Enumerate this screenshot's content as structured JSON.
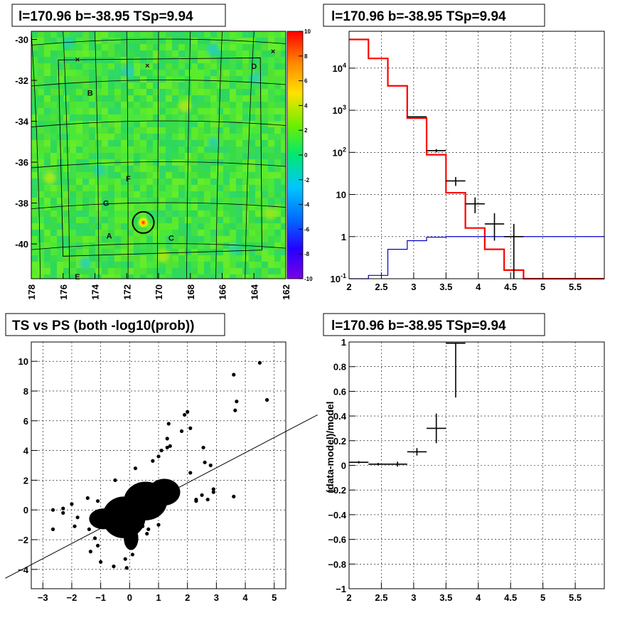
{
  "chart_data": [
    {
      "type": "heatmap",
      "title": "l=170.96 b=-38.95 TSp=9.94",
      "x_ticks": [
        "178",
        "176",
        "174",
        "172",
        "170",
        "168",
        "166",
        "164",
        "162"
      ],
      "y_ticks": [
        "-30",
        "-32",
        "-34",
        "-36",
        "-38",
        "-40"
      ],
      "xlim": [
        178,
        162
      ],
      "ylim": [
        -41.7,
        -29.6
      ],
      "z_range": [
        -10,
        10
      ],
      "z_ticks": [
        "10",
        "8",
        "6",
        "4",
        "2",
        "0",
        "-2",
        "-4",
        "-6",
        "-8",
        "-10"
      ],
      "source_labels": [
        {
          "text": "A",
          "l": 173.1,
          "b": -39.6
        },
        {
          "text": "B",
          "l": 174.3,
          "b": -32.6
        },
        {
          "text": "C",
          "l": 169.2,
          "b": -39.7
        },
        {
          "text": "D",
          "l": 164.0,
          "b": -31.3
        },
        {
          "text": "E",
          "l": 175.1,
          "b": -41.6
        },
        {
          "text": "F",
          "l": 171.9,
          "b": -36.8
        },
        {
          "text": "G",
          "l": 173.3,
          "b": -38.0
        }
      ],
      "hotspot": {
        "l": 170.96,
        "b": -38.95
      },
      "grid": true
    },
    {
      "type": "line",
      "title": "l=170.96 b=-38.95 TSp=9.94",
      "x_ticks": [
        "2",
        "2.5",
        "3",
        "3.5",
        "4",
        "4.5",
        "5",
        "5.5"
      ],
      "y_ticks": [
        "10^-1",
        "1",
        "10",
        "10^2",
        "10^3",
        "10^4"
      ],
      "xlim": [
        2,
        5.95
      ],
      "ylim": [
        0.1,
        75000
      ],
      "log_y": true,
      "grid": true,
      "series": [
        {
          "color": "#ff0000",
          "style": "step",
          "edges": [
            2.0,
            2.3,
            2.6,
            2.9,
            3.2,
            3.5,
            3.8,
            4.1,
            4.4,
            4.7,
            5.0,
            5.3,
            5.6,
            5.95
          ],
          "values": [
            48000,
            17000,
            3800,
            650,
            88,
            11,
            1.6,
            0.5,
            0.16,
            0.1,
            0.1,
            0.1,
            0.1
          ]
        },
        {
          "color": "#0000cc",
          "style": "step",
          "edges": [
            2.0,
            2.3,
            2.6,
            2.9,
            3.2,
            3.5,
            3.8,
            4.1,
            4.4,
            4.7,
            5.0,
            5.3,
            5.6,
            5.95
          ],
          "values": [
            0.1,
            0.12,
            0.5,
            0.8,
            0.97,
            1.0,
            1.0,
            1.0,
            1.0,
            1.0,
            1.0,
            1.0,
            1.0
          ]
        },
        {
          "color": "#000000",
          "style": "errorbar",
          "points": [
            {
              "x": 3.05,
              "y": 700,
              "xerr": 0.15,
              "ylo": 680,
              "yhi": 720
            },
            {
              "x": 3.35,
              "y": 110,
              "xerr": 0.15,
              "ylo": 100,
              "yhi": 120
            },
            {
              "x": 3.65,
              "y": 21,
              "xerr": 0.15,
              "ylo": 16,
              "yhi": 26
            },
            {
              "x": 3.95,
              "y": 6,
              "xerr": 0.15,
              "ylo": 3.6,
              "yhi": 8.5
            },
            {
              "x": 4.25,
              "y": 2,
              "xerr": 0.15,
              "ylo": 0.8,
              "yhi": 3.6
            },
            {
              "x": 4.55,
              "y": 1,
              "xerr": 0.15,
              "ylo": 0.1,
              "yhi": 2.0
            }
          ]
        }
      ]
    },
    {
      "type": "scatter",
      "title": "TS vs PS (both -log10(prob))",
      "x_ticks": [
        "-3",
        "-2",
        "-1",
        "0",
        "1",
        "2",
        "3",
        "4",
        "5"
      ],
      "y_ticks": [
        "-4",
        "-2",
        "0",
        "2",
        "4",
        "6",
        "8",
        "10"
      ],
      "xlim": [
        -3.4,
        5.4
      ],
      "ylim": [
        -5.3,
        11.3
      ],
      "grid": true,
      "line": {
        "x1": -4.3,
        "y1": -4.6,
        "x2": 6.5,
        "y2": 6.4
      },
      "points": [
        [
          4.5,
          9.9
        ],
        [
          3.6,
          9.1
        ],
        [
          4.75,
          7.4
        ],
        [
          3.7,
          7.3
        ],
        [
          3.65,
          6.7
        ],
        [
          2.0,
          6.6
        ],
        [
          1.9,
          6.4
        ],
        [
          1.35,
          5.8
        ],
        [
          2.1,
          5.5
        ],
        [
          1.8,
          5.3
        ],
        [
          1.3,
          4.8
        ],
        [
          1.4,
          4.3
        ],
        [
          1.3,
          4.2
        ],
        [
          2.55,
          4.2
        ],
        [
          1.1,
          4.0
        ],
        [
          2.6,
          3.2
        ],
        [
          2.8,
          3.0
        ],
        [
          2.1,
          2.5
        ],
        [
          2.9,
          1.4
        ],
        [
          2.9,
          1.2
        ],
        [
          3.6,
          0.9
        ],
        [
          2.3,
          0.6
        ],
        [
          2.7,
          0.7
        ],
        [
          2.3,
          0.7
        ],
        [
          -1.45,
          0.8
        ],
        [
          -1.1,
          0.6
        ],
        [
          -2.0,
          0.4
        ],
        [
          -2.3,
          0.1
        ],
        [
          -2.65,
          0.0
        ],
        [
          -2.3,
          -0.2
        ],
        [
          -2.65,
          -1.3
        ],
        [
          -1.8,
          -0.5
        ],
        [
          -1.9,
          -1.1
        ],
        [
          -1.4,
          -1.3
        ],
        [
          -1.2,
          -1.9
        ],
        [
          -1.1,
          -2.4
        ],
        [
          -1.35,
          -2.8
        ],
        [
          -1.0,
          -3.5
        ],
        [
          -0.55,
          -3.8
        ],
        [
          -0.1,
          -3.9
        ],
        [
          -0.15,
          -3.3
        ],
        [
          0.1,
          -3.0
        ],
        [
          0.45,
          -1.1
        ],
        [
          -0.1,
          -2.3
        ],
        [
          0.6,
          -1.6
        ],
        [
          0.65,
          -1.3
        ],
        [
          1.0,
          -1.0
        ],
        [
          0.95,
          0.5
        ],
        [
          1.5,
          0.8
        ],
        [
          1.6,
          1.5
        ],
        [
          2.5,
          1.0
        ],
        [
          0.8,
          3.3
        ],
        [
          1.0,
          3.6
        ],
        [
          0.2,
          2.8
        ],
        [
          -0.5,
          2.0
        ],
        [
          -0.3,
          -0.9
        ],
        [
          0.3,
          -0.2
        ]
      ],
      "blobs": [
        {
          "cx": -0.2,
          "cy": -0.5,
          "rx": 0.75,
          "ry": 1.4
        },
        {
          "cx": 0.55,
          "cy": 0.6,
          "rx": 0.75,
          "ry": 1.3
        },
        {
          "cx": -0.9,
          "cy": -0.6,
          "rx": 0.5,
          "ry": 0.7
        },
        {
          "cx": 1.2,
          "cy": 1.2,
          "rx": 0.55,
          "ry": 0.9
        },
        {
          "cx": 0.05,
          "cy": -1.9,
          "rx": 0.25,
          "ry": 0.8
        }
      ]
    },
    {
      "type": "scatter",
      "title": "l=170.96 b=-38.95 TSp=9.94",
      "ylabel": "(data-model)/model",
      "x_ticks": [
        "2",
        "2.5",
        "3",
        "3.5",
        "4",
        "4.5",
        "5",
        "5.5"
      ],
      "y_ticks": [
        "-1",
        "-0.8",
        "-0.6",
        "-0.4",
        "-0.2",
        "0",
        "0.2",
        "0.4",
        "0.6",
        "0.8",
        "1"
      ],
      "xlim": [
        2,
        5.95
      ],
      "ylim": [
        -1,
        1
      ],
      "grid": true,
      "points": [
        {
          "x": 2.15,
          "y": 0.025,
          "xerr": 0.15,
          "yerr": 0.01
        },
        {
          "x": 2.45,
          "y": 0.01,
          "xerr": 0.15,
          "yerr": 0.01
        },
        {
          "x": 2.75,
          "y": 0.01,
          "xerr": 0.15,
          "yerr": 0.02
        },
        {
          "x": 3.05,
          "y": 0.11,
          "xerr": 0.15,
          "yerr": 0.03
        },
        {
          "x": 3.35,
          "y": 0.3,
          "xerr": 0.15,
          "yerr": 0.12
        },
        {
          "x": 3.65,
          "y": 0.99,
          "xerr": 0.15,
          "ylo": 0.55,
          "yhi": 0.99
        }
      ]
    }
  ]
}
